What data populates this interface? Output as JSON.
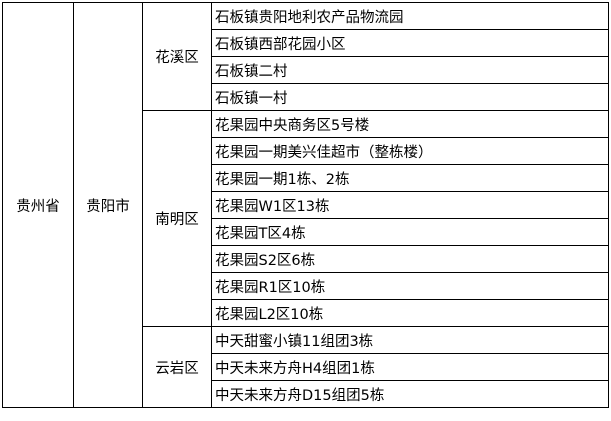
{
  "province": "贵州省",
  "city": "贵阳市",
  "districts": [
    {
      "name": "花溪区",
      "sites": [
        "石板镇贵阳地利农产品物流园",
        "石板镇西部花园小区",
        "石板镇二村",
        "石板镇一村"
      ]
    },
    {
      "name": "南明区",
      "sites": [
        "花果园中央商务区5号楼",
        "花果园一期美兴佳超市（整栋楼）",
        "花果园一期1栋、2栋",
        "花果园W1区13栋",
        "花果园T区4栋",
        "花果园S2区6栋",
        "花果园R1区10栋",
        "花果园L2区10栋"
      ]
    },
    {
      "name": "云岩区",
      "sites": [
        "中天甜蜜小镇11组团3栋",
        "中天未来方舟H4组团1栋",
        "中天未来方舟D15组团5栋"
      ]
    }
  ]
}
